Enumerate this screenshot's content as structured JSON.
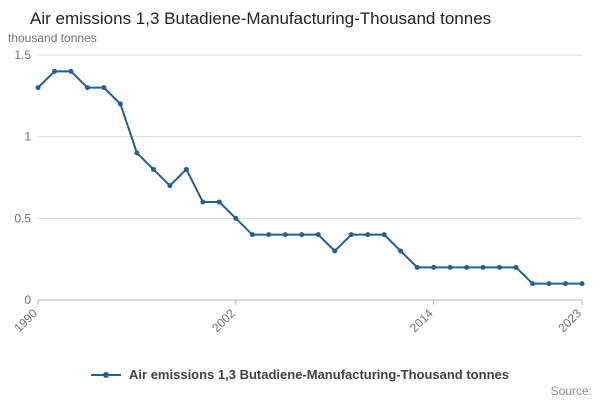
{
  "header": {
    "title": "Air emissions 1,3 Butadiene-Manufacturing-Thousand tonnes",
    "unit_label": "thousand tonnes"
  },
  "legend": {
    "label": "Air emissions 1,3 Butadiene-Manufacturing-Thousand tonnes"
  },
  "footer": {
    "source_label": "Source:"
  },
  "chart_data": {
    "type": "line",
    "title": "Air emissions 1,3 Butadiene-Manufacturing-Thousand tonnes",
    "xlabel": "",
    "ylabel": "thousand tonnes",
    "x": [
      1990,
      1991,
      1992,
      1993,
      1994,
      1995,
      1996,
      1997,
      1998,
      1999,
      2000,
      2001,
      2002,
      2003,
      2004,
      2005,
      2006,
      2007,
      2008,
      2009,
      2010,
      2011,
      2012,
      2013,
      2014,
      2015,
      2016,
      2017,
      2018,
      2019,
      2020,
      2021,
      2022,
      2023
    ],
    "values": [
      1.3,
      1.4,
      1.4,
      1.3,
      1.3,
      1.2,
      0.9,
      0.8,
      0.7,
      0.8,
      0.6,
      0.6,
      0.5,
      0.4,
      0.4,
      0.4,
      0.4,
      0.4,
      0.3,
      0.4,
      0.4,
      0.4,
      0.3,
      0.2,
      0.2,
      0.2,
      0.2,
      0.2,
      0.2,
      0.2,
      0.1,
      0.1,
      0.1,
      0.1
    ],
    "ylim": [
      0,
      1.5
    ],
    "x_range": [
      1990,
      2023
    ],
    "y_ticks": [
      0,
      0.5,
      1,
      1.5
    ],
    "x_ticks": [
      1990,
      2002,
      2014,
      2023
    ],
    "line_color": "#206095",
    "grid_color": "#d9d9d9",
    "axis_color": "#b3b3b3",
    "tick_text_color": "#707071",
    "grid": "horizontal",
    "legend_position": "bottom"
  }
}
